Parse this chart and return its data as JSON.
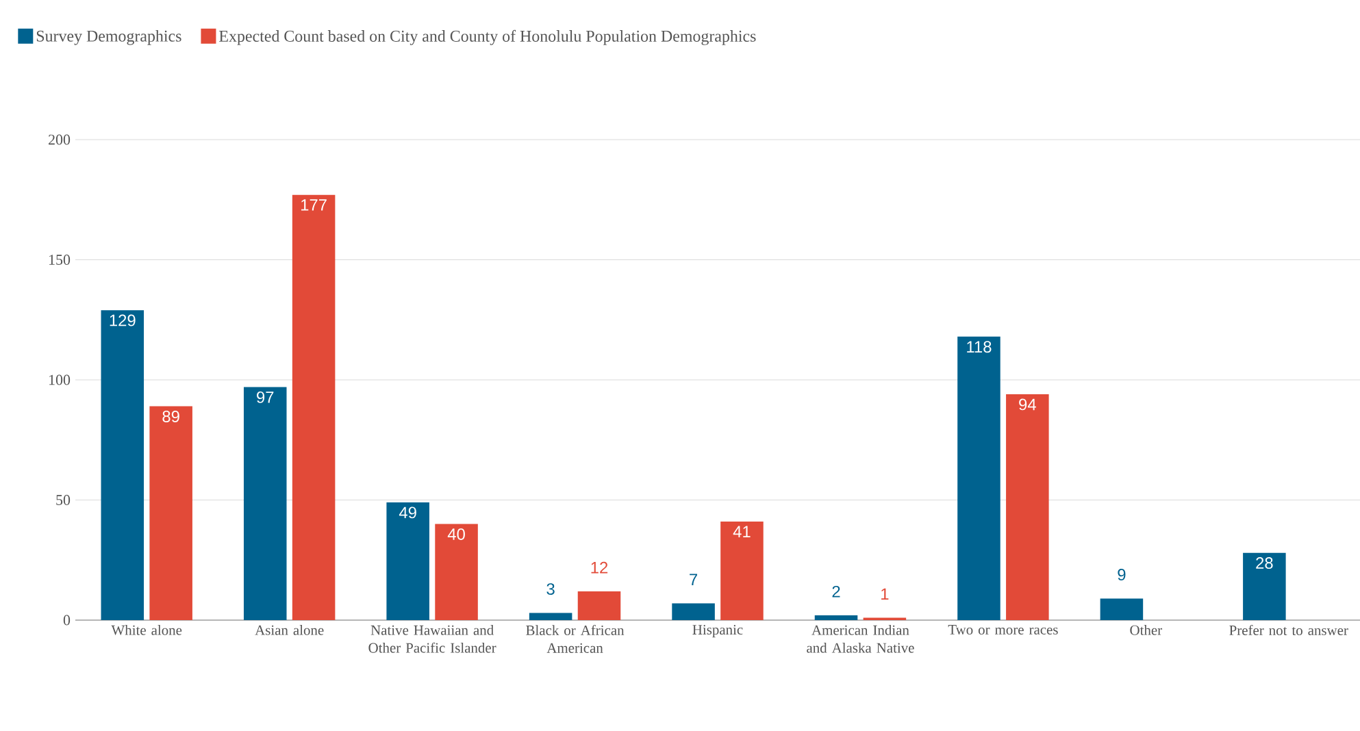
{
  "chart_data": {
    "type": "bar",
    "categories": [
      "White alone",
      "Asian alone",
      "Native Hawaiian and Other Pacific Islander",
      "Black or African American",
      "Hispanic",
      "American Indian and Alaska Native",
      "Two or more races",
      "Other",
      "Prefer not to answer"
    ],
    "series": [
      {
        "name": "Survey Demographics",
        "color": "#00628f",
        "values": [
          129,
          97,
          49,
          3,
          7,
          2,
          118,
          9,
          28
        ]
      },
      {
        "name": "Expected Count based on City and County of Honolulu Population Demographics",
        "color": "#e24a38",
        "values": [
          89,
          177,
          40,
          12,
          41,
          1,
          94,
          null,
          null
        ]
      }
    ],
    "ylim": [
      0,
      200
    ],
    "yticks": [
      0,
      50,
      100,
      150,
      200
    ],
    "grid": "y",
    "legend": "top left",
    "data_labels": true
  }
}
